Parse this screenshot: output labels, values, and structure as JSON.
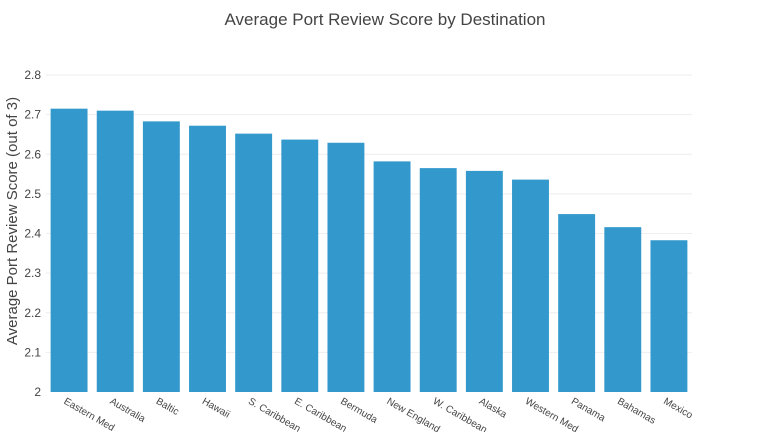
{
  "chart_data": {
    "type": "bar",
    "title": "Average Port Review Score by Destination",
    "xlabel": "",
    "ylabel": "Average Port Review Score (out of 3)",
    "ylim": [
      2,
      2.8
    ],
    "yticks": [
      "2",
      "2.1",
      "2.2",
      "2.3",
      "2.4",
      "2.5",
      "2.6",
      "2.7",
      "2.8"
    ],
    "grid": true,
    "bar_color": "#3399cc",
    "categories": [
      "Eastern Med",
      "Australia",
      "Baltic",
      "Hawaii",
      "S. Caribbean",
      "E. Caribbean",
      "Bermuda",
      "New England",
      "W. Caribbean",
      "Alaska",
      "Western Med",
      "Panama",
      "Bahamas",
      "Mexico"
    ],
    "values": [
      2.715,
      2.71,
      2.683,
      2.672,
      2.652,
      2.637,
      2.629,
      2.582,
      2.565,
      2.558,
      2.536,
      2.449,
      2.416,
      2.383
    ]
  }
}
